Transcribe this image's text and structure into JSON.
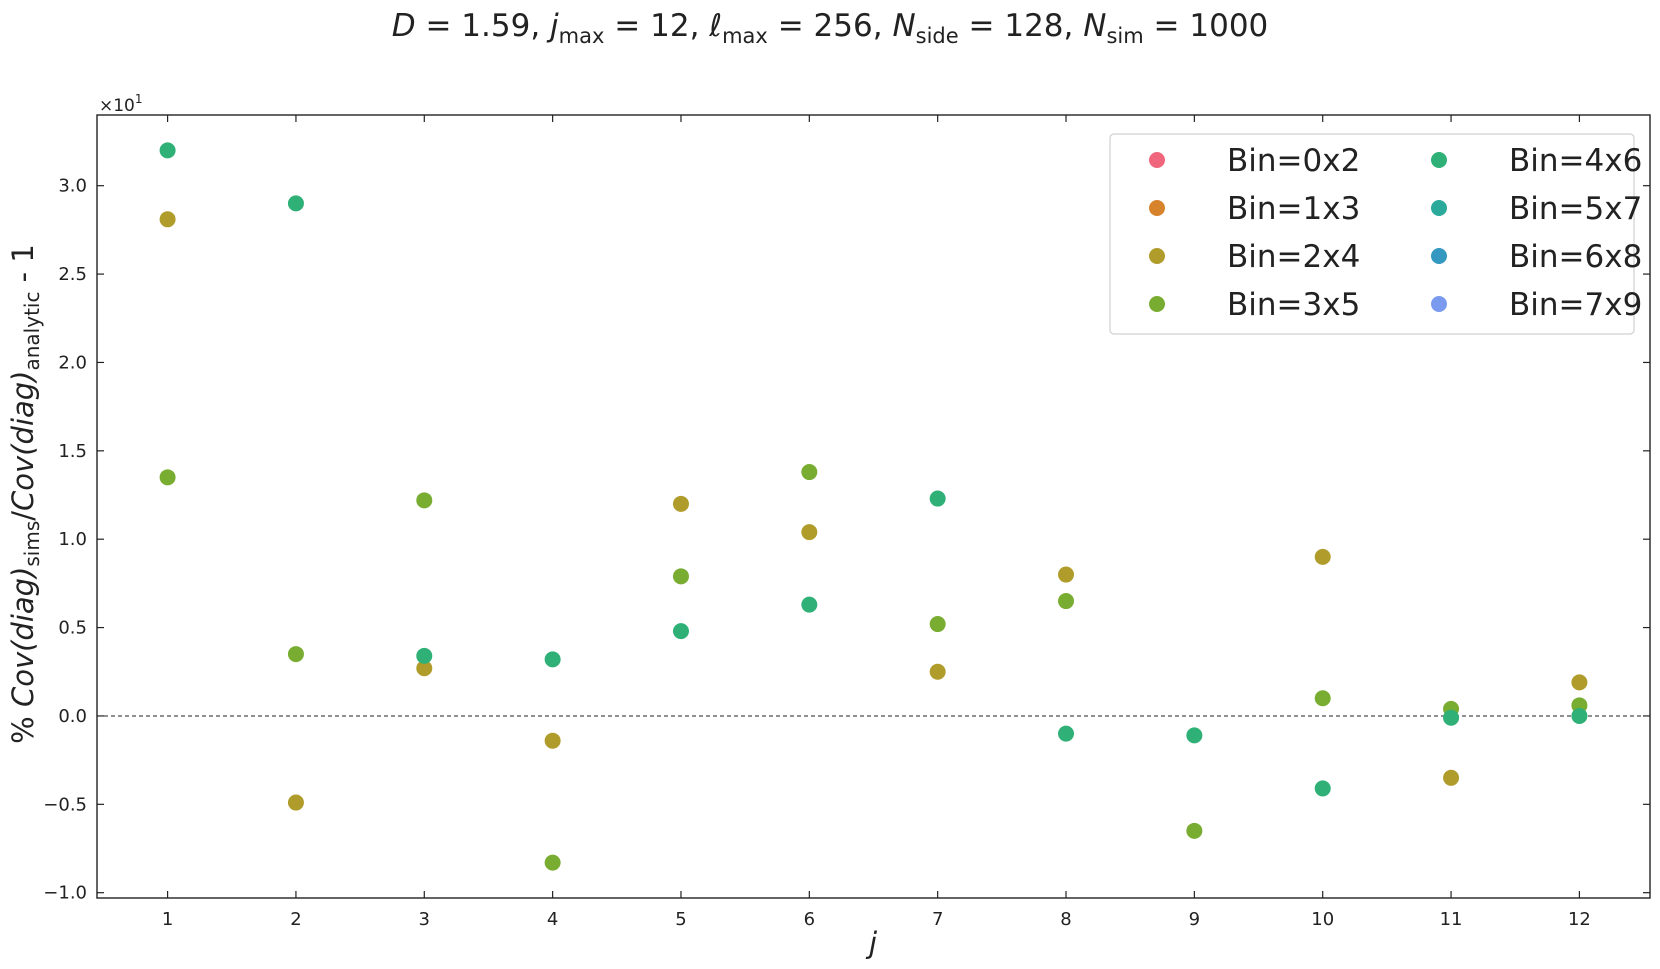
{
  "chart_data": {
    "type": "scatter",
    "title": {
      "D": "1.59",
      "jmax": "12",
      "lmax": "256",
      "nside": "128",
      "nsim": "1000"
    },
    "xlabel": "j",
    "ylabel": {
      "prefix": "% ",
      "cov": "Cov(diag)",
      "sims": "sims",
      "analytic": "analytic",
      "suffix": " - 1"
    },
    "y_multiplier": "×10",
    "y_multiplier_exp": "1",
    "x": [
      1,
      2,
      3,
      4,
      5,
      6,
      7,
      8,
      9,
      10,
      11,
      12
    ],
    "xlim": [
      0.45,
      12.55
    ],
    "ylim": [
      -1.03,
      3.4
    ],
    "yticks": [
      -1.0,
      -0.5,
      0.0,
      0.5,
      1.0,
      1.5,
      2.0,
      2.5,
      3.0
    ],
    "ytick_labels": [
      "−1.0",
      "−0.5",
      "0.0",
      "0.5",
      "1.0",
      "1.5",
      "2.0",
      "2.5",
      "3.0"
    ],
    "zero_line": true,
    "grid": false,
    "legend_placement": "top-right",
    "legend_columns": 2,
    "series": [
      {
        "name": "Bin=0x2",
        "color": "#f0677d",
        "values": []
      },
      {
        "name": "Bin=1x3",
        "color": "#d6832c",
        "values": []
      },
      {
        "name": "Bin=2x4",
        "color": "#b09c2a",
        "values": [
          2.81,
          -0.49,
          0.27,
          -0.14,
          1.2,
          1.04,
          0.25,
          0.8,
          null,
          0.9,
          -0.35,
          0.19
        ]
      },
      {
        "name": "Bin=3x5",
        "color": "#79ad32",
        "values": [
          1.35,
          0.35,
          1.22,
          -0.83,
          0.79,
          1.38,
          0.52,
          0.65,
          -0.65,
          0.1,
          0.04,
          0.06
        ]
      },
      {
        "name": "Bin=4x6",
        "color": "#2eb076",
        "values": [
          3.2,
          2.9,
          0.34,
          0.32,
          0.48,
          0.63,
          1.23,
          -0.1,
          -0.11,
          -0.41,
          -0.01,
          0.0
        ]
      },
      {
        "name": "Bin=5x7",
        "color": "#2ba99a",
        "values": []
      },
      {
        "name": "Bin=6x8",
        "color": "#3399c0",
        "values": []
      },
      {
        "name": "Bin=7x9",
        "color": "#7a9af0",
        "values": []
      }
    ]
  }
}
